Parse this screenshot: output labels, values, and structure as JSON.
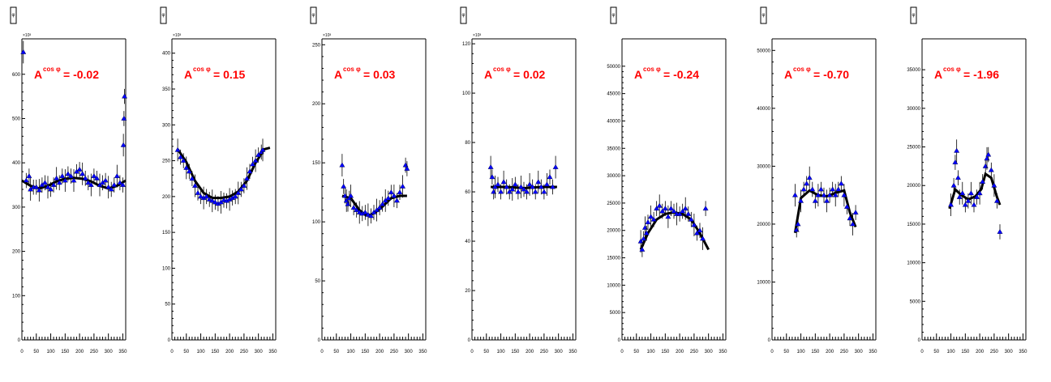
{
  "chart_data": [
    {
      "type": "scatter",
      "title": "φ",
      "annotation": {
        "prefix": "A",
        "sup": "cos φ",
        "value": "= -0.02"
      },
      "ylim": [
        0,
        680
      ],
      "xlim": [
        0,
        360
      ],
      "yticks": [
        0,
        100,
        200,
        300,
        400,
        500,
        600
      ],
      "ytick_labels": [
        "0",
        "100",
        "200",
        "300",
        "400",
        "500",
        "600"
      ],
      "exponent": "×10³",
      "xticks": [
        0,
        50,
        100,
        150,
        200,
        250,
        300,
        350
      ],
      "xtick_labels": [
        "0",
        "50",
        "100",
        "150",
        "200",
        "250",
        "300",
        "350"
      ],
      "points": [
        [
          5,
          650
        ],
        [
          15,
          360
        ],
        [
          25,
          370
        ],
        [
          30,
          340
        ],
        [
          40,
          345
        ],
        [
          50,
          345
        ],
        [
          60,
          338
        ],
        [
          70,
          350
        ],
        [
          80,
          355
        ],
        [
          90,
          345
        ],
        [
          100,
          340
        ],
        [
          110,
          350
        ],
        [
          120,
          365
        ],
        [
          130,
          355
        ],
        [
          140,
          370
        ],
        [
          150,
          360
        ],
        [
          160,
          375
        ],
        [
          170,
          370
        ],
        [
          180,
          360
        ],
        [
          190,
          380
        ],
        [
          200,
          385
        ],
        [
          210,
          375
        ],
        [
          220,
          365
        ],
        [
          230,
          355
        ],
        [
          240,
          350
        ],
        [
          250,
          370
        ],
        [
          260,
          365
        ],
        [
          270,
          350
        ],
        [
          280,
          355
        ],
        [
          290,
          360
        ],
        [
          300,
          345
        ],
        [
          310,
          340
        ],
        [
          320,
          350
        ],
        [
          330,
          370
        ],
        [
          340,
          355
        ],
        [
          350,
          350
        ],
        [
          352,
          440
        ],
        [
          354,
          500
        ],
        [
          356,
          550
        ]
      ],
      "fit": [
        [
          0,
          360
        ],
        [
          30,
          348
        ],
        [
          60,
          342
        ],
        [
          90,
          348
        ],
        [
          120,
          358
        ],
        [
          150,
          364
        ],
        [
          180,
          366
        ],
        [
          210,
          364
        ],
        [
          240,
          358
        ],
        [
          270,
          348
        ],
        [
          300,
          342
        ],
        [
          330,
          348
        ],
        [
          360,
          360
        ]
      ]
    },
    {
      "type": "scatter",
      "title": "φ",
      "annotation": {
        "prefix": "A",
        "sup": "cos φ",
        "value": "= 0.15"
      },
      "ylim": [
        0,
        420
      ],
      "xlim": [
        0,
        360
      ],
      "yticks": [
        0,
        50,
        100,
        150,
        200,
        250,
        300,
        350,
        400
      ],
      "ytick_labels": [
        "0",
        "50",
        "100",
        "150",
        "200",
        "250",
        "300",
        "350",
        "400"
      ],
      "exponent": "×10³",
      "xticks": [
        0,
        50,
        100,
        150,
        200,
        250,
        300,
        350
      ],
      "xtick_labels": [
        "0",
        "50",
        "100",
        "150",
        "200",
        "250",
        "300",
        "350"
      ],
      "points": [
        [
          20,
          265
        ],
        [
          30,
          255
        ],
        [
          40,
          250
        ],
        [
          50,
          240
        ],
        [
          60,
          235
        ],
        [
          70,
          225
        ],
        [
          80,
          215
        ],
        [
          90,
          205
        ],
        [
          100,
          200
        ],
        [
          110,
          198
        ],
        [
          120,
          200
        ],
        [
          130,
          196
        ],
        [
          140,
          194
        ],
        [
          150,
          192
        ],
        [
          160,
          190
        ],
        [
          170,
          192
        ],
        [
          180,
          195
        ],
        [
          190,
          194
        ],
        [
          200,
          196
        ],
        [
          210,
          198
        ],
        [
          220,
          200
        ],
        [
          230,
          205
        ],
        [
          240,
          210
        ],
        [
          250,
          215
        ],
        [
          260,
          225
        ],
        [
          270,
          235
        ],
        [
          280,
          245
        ],
        [
          290,
          250
        ],
        [
          300,
          258
        ],
        [
          310,
          262
        ],
        [
          315,
          265
        ]
      ],
      "fit": [
        [
          20,
          266
        ],
        [
          50,
          248
        ],
        [
          80,
          222
        ],
        [
          110,
          205
        ],
        [
          140,
          198
        ],
        [
          170,
          198
        ],
        [
          200,
          200
        ],
        [
          230,
          207
        ],
        [
          260,
          222
        ],
        [
          290,
          247
        ],
        [
          320,
          266
        ],
        [
          340,
          268
        ]
      ]
    },
    {
      "type": "scatter",
      "title": "φ",
      "annotation": {
        "prefix": "A",
        "sup": "cos φ",
        "value": "= 0.03"
      },
      "ylim": [
        0,
        255
      ],
      "xlim": [
        0,
        360
      ],
      "yticks": [
        0,
        50,
        100,
        150,
        200,
        250
      ],
      "ytick_labels": [
        "0",
        "50",
        "100",
        "150",
        "200",
        "250"
      ],
      "exponent": "×10³",
      "xticks": [
        0,
        50,
        100,
        150,
        200,
        250,
        300,
        350
      ],
      "xtick_labels": [
        "0",
        "50",
        "100",
        "150",
        "200",
        "250",
        "300",
        "350"
      ],
      "points": [
        [
          70,
          148
        ],
        [
          75,
          130
        ],
        [
          80,
          122
        ],
        [
          85,
          118
        ],
        [
          90,
          115
        ],
        [
          95,
          120
        ],
        [
          100,
          122
        ],
        [
          110,
          112
        ],
        [
          120,
          110
        ],
        [
          130,
          108
        ],
        [
          140,
          107
        ],
        [
          150,
          108
        ],
        [
          160,
          106
        ],
        [
          170,
          105
        ],
        [
          180,
          108
        ],
        [
          190,
          110
        ],
        [
          200,
          112
        ],
        [
          210,
          115
        ],
        [
          220,
          118
        ],
        [
          230,
          120
        ],
        [
          240,
          125
        ],
        [
          250,
          122
        ],
        [
          260,
          118
        ],
        [
          270,
          125
        ],
        [
          280,
          130
        ],
        [
          290,
          148
        ],
        [
          295,
          145
        ]
      ],
      "fit": [
        [
          70,
          122
        ],
        [
          100,
          120
        ],
        [
          130,
          110
        ],
        [
          150,
          106
        ],
        [
          170,
          106
        ],
        [
          190,
          109
        ],
        [
          210,
          113
        ],
        [
          240,
          120
        ],
        [
          270,
          122
        ],
        [
          295,
          122
        ]
      ]
    },
    {
      "type": "scatter",
      "title": "φ",
      "annotation": {
        "prefix": "A",
        "sup": "cos φ",
        "value": "= 0.02"
      },
      "ylim": [
        0,
        122
      ],
      "xlim": [
        0,
        360
      ],
      "yticks": [
        0,
        20,
        40,
        60,
        80,
        100,
        120
      ],
      "ytick_labels": [
        "0",
        "20",
        "40",
        "60",
        "80",
        "100",
        "120"
      ],
      "exponent": "×10³",
      "xticks": [
        0,
        50,
        100,
        150,
        200,
        250,
        300,
        350
      ],
      "xtick_labels": [
        "0",
        "50",
        "100",
        "150",
        "200",
        "250",
        "300",
        "350"
      ],
      "points": [
        [
          65,
          70
        ],
        [
          70,
          66
        ],
        [
          75,
          60
        ],
        [
          80,
          62
        ],
        [
          90,
          63
        ],
        [
          100,
          60
        ],
        [
          110,
          64
        ],
        [
          120,
          62
        ],
        [
          130,
          60
        ],
        [
          140,
          61
        ],
        [
          150,
          63
        ],
        [
          160,
          60
        ],
        [
          170,
          62
        ],
        [
          180,
          61
        ],
        [
          190,
          60
        ],
        [
          200,
          63
        ],
        [
          210,
          62
        ],
        [
          220,
          60
        ],
        [
          230,
          64
        ],
        [
          240,
          62
        ],
        [
          250,
          60
        ],
        [
          260,
          63
        ],
        [
          270,
          66
        ],
        [
          280,
          62
        ],
        [
          290,
          70
        ]
      ],
      "fit": [
        [
          65,
          62
        ],
        [
          120,
          62
        ],
        [
          180,
          61.5
        ],
        [
          240,
          62
        ],
        [
          295,
          62
        ]
      ]
    },
    {
      "type": "scatter",
      "title": "φ",
      "annotation": {
        "prefix": "A",
        "sup": "cos φ",
        "value": "= -0.24"
      },
      "ylim": [
        0,
        55000
      ],
      "xlim": [
        0,
        360
      ],
      "yticks": [
        0,
        5000,
        10000,
        15000,
        20000,
        25000,
        30000,
        35000,
        40000,
        45000,
        50000
      ],
      "ytick_labels": [
        "0",
        "5000",
        "10000",
        "15000",
        "20000",
        "25000",
        "30000",
        "35000",
        "40000",
        "45000",
        "50000"
      ],
      "xticks": [
        0,
        50,
        100,
        150,
        200,
        250,
        300,
        350
      ],
      "xtick_labels": [
        "0",
        "50",
        "100",
        "150",
        "200",
        "250",
        "300",
        "350"
      ],
      "points": [
        [
          65,
          18000
        ],
        [
          70,
          16500
        ],
        [
          75,
          18500
        ],
        [
          80,
          20500
        ],
        [
          85,
          19500
        ],
        [
          90,
          21500
        ],
        [
          100,
          22500
        ],
        [
          110,
          22000
        ],
        [
          120,
          24000
        ],
        [
          130,
          24500
        ],
        [
          140,
          23500
        ],
        [
          150,
          24000
        ],
        [
          160,
          22500
        ],
        [
          170,
          24000
        ],
        [
          180,
          23500
        ],
        [
          190,
          23000
        ],
        [
          200,
          23000
        ],
        [
          210,
          23500
        ],
        [
          220,
          24000
        ],
        [
          230,
          23000
        ],
        [
          240,
          22000
        ],
        [
          250,
          21000
        ],
        [
          260,
          19500
        ],
        [
          270,
          20000
        ],
        [
          280,
          18500
        ],
        [
          290,
          24000
        ]
      ],
      "fit": [
        [
          65,
          16500
        ],
        [
          90,
          19500
        ],
        [
          120,
          22000
        ],
        [
          150,
          23000
        ],
        [
          180,
          23300
        ],
        [
          210,
          23000
        ],
        [
          240,
          22000
        ],
        [
          270,
          19500
        ],
        [
          300,
          16500
        ]
      ]
    },
    {
      "type": "scatter",
      "title": "φ",
      "annotation": {
        "prefix": "A",
        "sup": "cos φ",
        "value": "= -0.70"
      },
      "ylim": [
        0,
        52000
      ],
      "xlim": [
        0,
        360
      ],
      "yticks": [
        0,
        10000,
        20000,
        30000,
        40000,
        50000
      ],
      "ytick_labels": [
        "0",
        "10000",
        "20000",
        "30000",
        "40000",
        "50000"
      ],
      "xticks": [
        0,
        50,
        100,
        150,
        200,
        250,
        300,
        350
      ],
      "xtick_labels": [
        "0",
        "50",
        "100",
        "150",
        "200",
        "250",
        "300",
        "350"
      ],
      "points": [
        [
          80,
          25000
        ],
        [
          85,
          19000
        ],
        [
          90,
          20000
        ],
        [
          100,
          24000
        ],
        [
          110,
          26000
        ],
        [
          120,
          27000
        ],
        [
          130,
          28000
        ],
        [
          140,
          26000
        ],
        [
          150,
          24000
        ],
        [
          160,
          25000
        ],
        [
          170,
          26000
        ],
        [
          180,
          25000
        ],
        [
          190,
          24000
        ],
        [
          200,
          25000
        ],
        [
          210,
          26000
        ],
        [
          220,
          25000
        ],
        [
          230,
          26000
        ],
        [
          240,
          27000
        ],
        [
          250,
          25000
        ],
        [
          260,
          23000
        ],
        [
          270,
          21000
        ],
        [
          280,
          20000
        ],
        [
          290,
          22000
        ]
      ],
      "fit": [
        [
          80,
          18500
        ],
        [
          100,
          24500
        ],
        [
          130,
          25800
        ],
        [
          160,
          25000
        ],
        [
          190,
          24800
        ],
        [
          220,
          25400
        ],
        [
          250,
          25800
        ],
        [
          270,
          22000
        ],
        [
          290,
          19500
        ]
      ]
    },
    {
      "type": "scatter",
      "title": "φ",
      "annotation": {
        "prefix": "A",
        "sup": "cos φ",
        "value": "= -1.96"
      },
      "ylim": [
        0,
        39000
      ],
      "xlim": [
        0,
        360
      ],
      "yticks": [
        0,
        5000,
        10000,
        15000,
        20000,
        25000,
        30000,
        35000
      ],
      "ytick_labels": [
        "0",
        "5000",
        "10000",
        "15000",
        "20000",
        "25000",
        "30000",
        "35000"
      ],
      "xticks": [
        0,
        50,
        100,
        150,
        200,
        250,
        300,
        350
      ],
      "xtick_labels": [
        "0",
        "50",
        "100",
        "150",
        "200",
        "250",
        "300",
        "350"
      ],
      "points": [
        [
          100,
          17500
        ],
        [
          110,
          20000
        ],
        [
          115,
          23000
        ],
        [
          120,
          24500
        ],
        [
          125,
          21000
        ],
        [
          130,
          18500
        ],
        [
          140,
          19000
        ],
        [
          150,
          17500
        ],
        [
          160,
          18000
        ],
        [
          170,
          19000
        ],
        [
          180,
          17500
        ],
        [
          190,
          18500
        ],
        [
          200,
          19000
        ],
        [
          210,
          20500
        ],
        [
          220,
          22500
        ],
        [
          225,
          23500
        ],
        [
          230,
          24000
        ],
        [
          240,
          22000
        ],
        [
          250,
          20000
        ],
        [
          260,
          18000
        ],
        [
          270,
          14000
        ]
      ],
      "fit": [
        [
          95,
          17000
        ],
        [
          115,
          19500
        ],
        [
          135,
          18800
        ],
        [
          160,
          18200
        ],
        [
          185,
          18600
        ],
        [
          205,
          19500
        ],
        [
          220,
          21500
        ],
        [
          240,
          21000
        ],
        [
          260,
          18500
        ],
        [
          270,
          17500
        ]
      ]
    }
  ]
}
